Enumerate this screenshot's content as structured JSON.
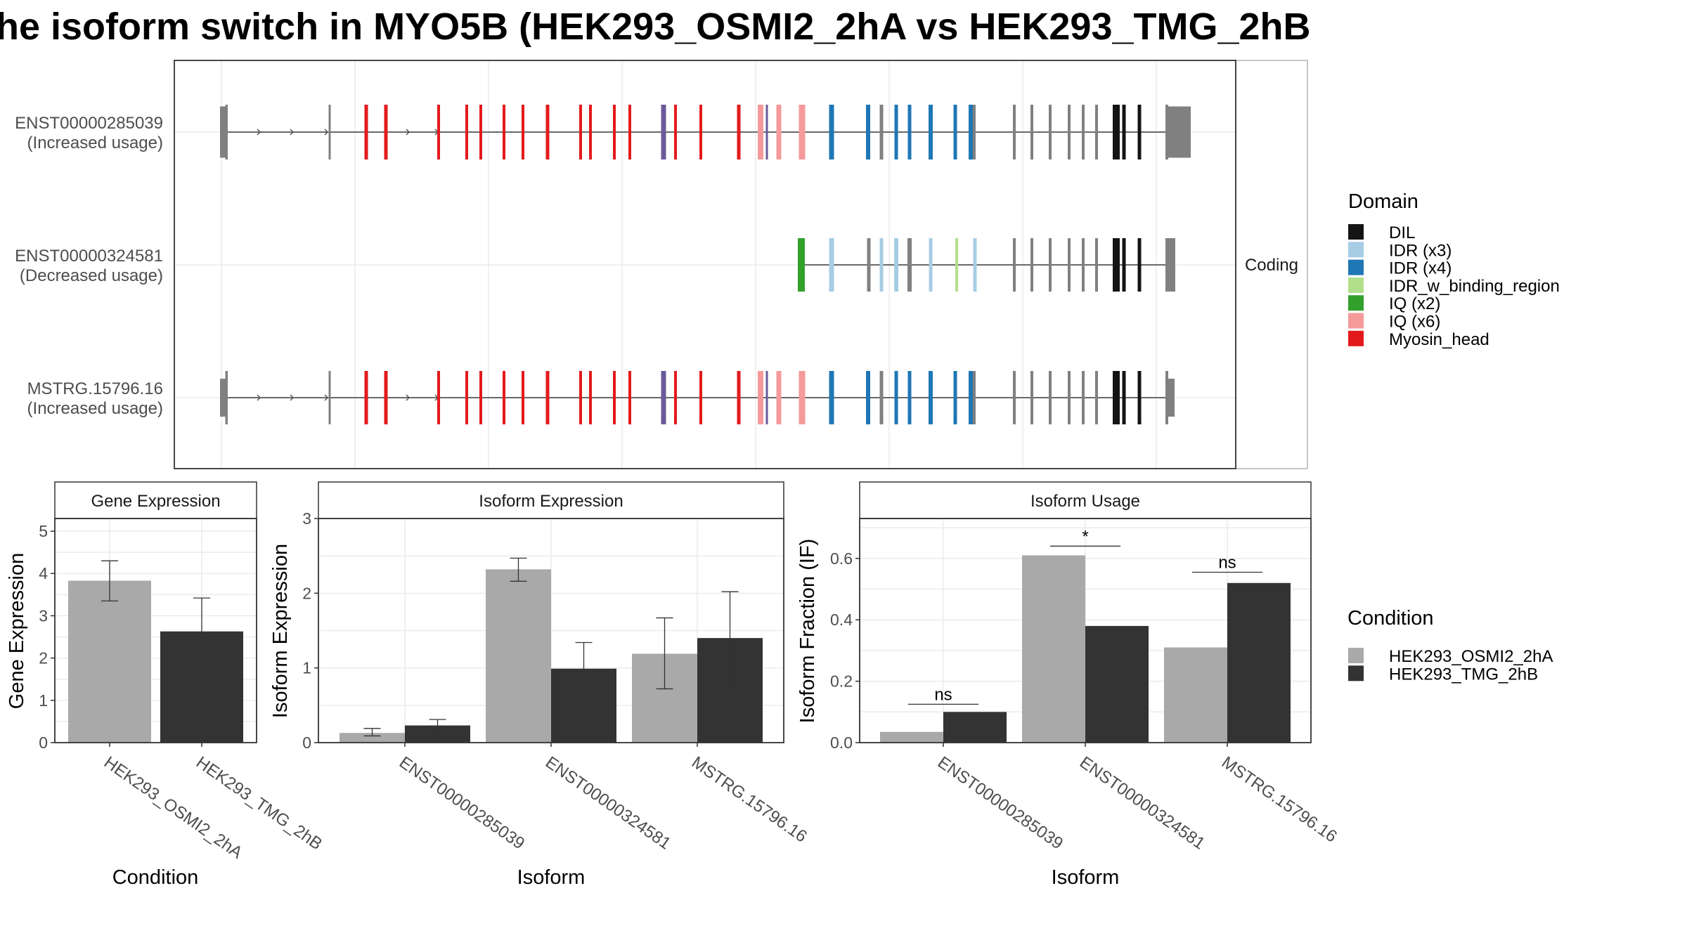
{
  "title": "he isoform switch in MYO5B (HEK293_OSMI2_2hA vs HEK293_TMG_2hB",
  "colors": {
    "DIL": "#141414",
    "IDR (x3)": "#a6cde3",
    "IDR (x4)": "#1f77b4",
    "IDR_w_binding_region": "#b2df8a",
    "IQ (x2)": "#33a02c",
    "IQ (x6)": "#f59a9a",
    "Myosin_head": "#e31a1c",
    "none": "#808080",
    "overlap": "#6a5a9a",
    "cond1": "#a9a9a9",
    "cond2": "#333333"
  },
  "structure": {
    "facet_label": "Coding",
    "isoforms": [
      {
        "id": "ENST00000285039",
        "usage": "(Increased usage)"
      },
      {
        "id": "ENST00000324581",
        "usage": "(Decreased usage)"
      },
      {
        "id": "MSTRG.15796.16",
        "usage": "(Increased usage)"
      }
    ]
  },
  "legends": {
    "domain_title": "Domain",
    "domains": [
      "DIL",
      "IDR (x3)",
      "IDR (x4)",
      "IDR_w_binding_region",
      "IQ (x2)",
      "IQ (x6)",
      "Myosin_head"
    ],
    "condition_title": "Condition",
    "conditions": [
      "HEK293_OSMI2_2hA",
      "HEK293_TMG_2hB"
    ]
  },
  "chart_data": [
    {
      "type": "bar",
      "title": "Gene Expression",
      "xlabel": "Condition",
      "ylabel": "Gene Expression",
      "ylim": [
        0,
        5.3
      ],
      "yticks": [
        0,
        1,
        2,
        3,
        4,
        5
      ],
      "categories": [
        "HEK293_OSMI2_2hA",
        "HEK293_TMG_2hB"
      ],
      "series": [
        {
          "name": "HEK293_OSMI2_2hA",
          "values": [
            3.83,
            null
          ],
          "err_low": [
            3.35,
            null
          ],
          "err_high": [
            4.3,
            null
          ]
        },
        {
          "name": "HEK293_TMG_2hB",
          "values": [
            null,
            2.63
          ],
          "err_low": [
            null,
            1.87
          ],
          "err_high": [
            null,
            3.42
          ]
        }
      ]
    },
    {
      "type": "bar",
      "title": "Isoform Expression",
      "xlabel": "Isoform",
      "ylabel": "Isoform Expression",
      "ylim": [
        0,
        3
      ],
      "yticks": [
        0,
        1,
        2,
        3
      ],
      "categories": [
        "ENST00000285039",
        "ENST00000324581",
        "MSTRG.15796.16"
      ],
      "series": [
        {
          "name": "HEK293_OSMI2_2hA",
          "values": [
            0.13,
            2.32,
            1.19
          ],
          "err_low": [
            0.09,
            2.16,
            0.72
          ],
          "err_high": [
            0.19,
            2.47,
            1.67
          ]
        },
        {
          "name": "HEK293_TMG_2hB",
          "values": [
            0.23,
            0.99,
            1.4
          ],
          "err_low": [
            0.15,
            0.66,
            0.8
          ],
          "err_high": [
            0.31,
            1.34,
            2.02
          ]
        }
      ]
    },
    {
      "type": "bar",
      "title": "Isoform Usage",
      "xlabel": "Isoform",
      "ylabel": "Isoform Fraction (IF)",
      "ylim": [
        0,
        0.73
      ],
      "yticks": [
        0.0,
        0.2,
        0.4,
        0.6
      ],
      "ytick_labels": [
        "0.0",
        "0.2",
        "0.4",
        "0.6"
      ],
      "categories": [
        "ENST00000285039",
        "ENST00000324581",
        "MSTRG.15796.16"
      ],
      "series": [
        {
          "name": "HEK293_OSMI2_2hA",
          "values": [
            0.035,
            0.61,
            0.31
          ]
        },
        {
          "name": "HEK293_TMG_2hB",
          "values": [
            0.1,
            0.38,
            0.52
          ]
        }
      ],
      "significance": [
        {
          "label": "ns",
          "y": 0.125
        },
        {
          "label": "*",
          "y": 0.64
        },
        {
          "label": "ns",
          "y": 0.555
        }
      ]
    }
  ]
}
